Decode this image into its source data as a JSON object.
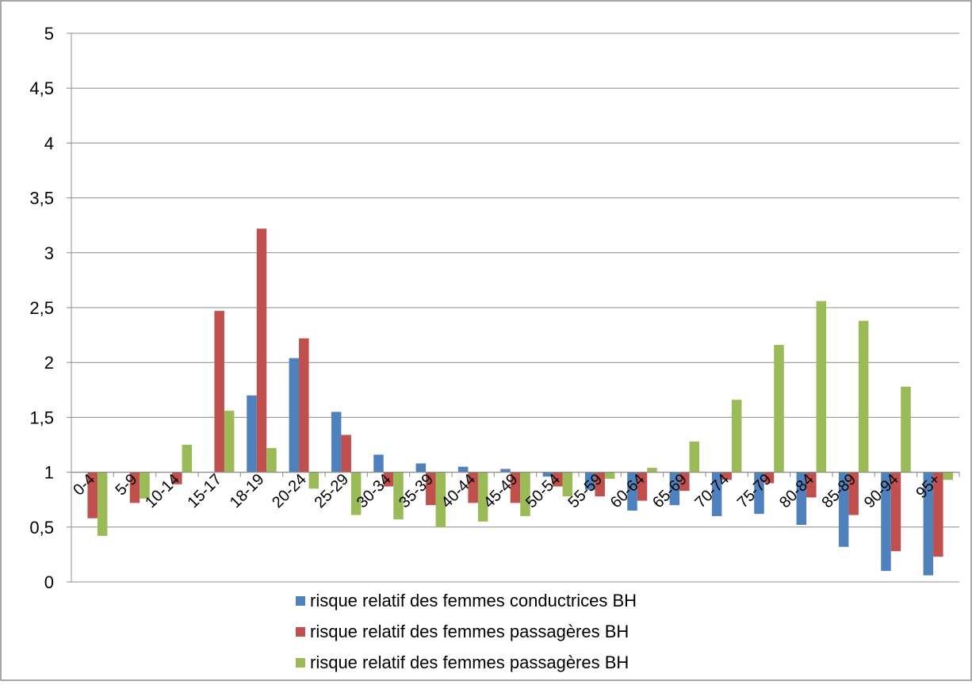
{
  "chart_data": {
    "type": "bar",
    "categories": [
      "0-4",
      "5-9",
      "10-14",
      "15-17",
      "18-19",
      "20-24",
      "25-29",
      "30-34",
      "35-39",
      "40-44",
      "45-49",
      "50-54",
      "55-59",
      "60-64",
      "65-69",
      "70-74",
      "75-79",
      "80-84",
      "85-89",
      "90-94",
      "95+"
    ],
    "series": [
      {
        "name": "risque relatif des femmes conductrices BH",
        "color": "#4f81bd",
        "values": [
          1,
          1,
          1,
          1,
          1.7,
          2.04,
          1.55,
          1.16,
          1.08,
          1.05,
          1.03,
          0.96,
          0.84,
          0.65,
          0.7,
          0.6,
          0.62,
          0.52,
          0.32,
          0.1,
          0.06
        ]
      },
      {
        "name": "risque relatif des femmes passagères BH",
        "color": "#c0504d",
        "values": [
          0.58,
          0.72,
          0.89,
          2.47,
          3.22,
          2.22,
          1.34,
          0.87,
          0.7,
          0.72,
          0.72,
          0.87,
          0.78,
          0.74,
          0.83,
          0.93,
          0.9,
          0.77,
          0.61,
          0.28,
          0.23
        ]
      },
      {
        "name": "risque relatif des femmes passagères BH",
        "color": "#9bbb59",
        "values": [
          0.42,
          0.76,
          1.25,
          1.56,
          1.22,
          0.85,
          0.61,
          0.57,
          0.5,
          0.55,
          0.6,
          0.78,
          0.94,
          1.04,
          1.28,
          1.66,
          2.16,
          2.56,
          2.38,
          1.78,
          0.93
        ]
      }
    ],
    "y_ticks": [
      "0",
      "0,5",
      "1",
      "1,5",
      "2",
      "2,5",
      "3",
      "3,5",
      "4",
      "4,5",
      "5"
    ],
    "ylim": [
      0,
      5
    ],
    "baseline": 1,
    "grid": true,
    "legend_position": "bottom"
  }
}
